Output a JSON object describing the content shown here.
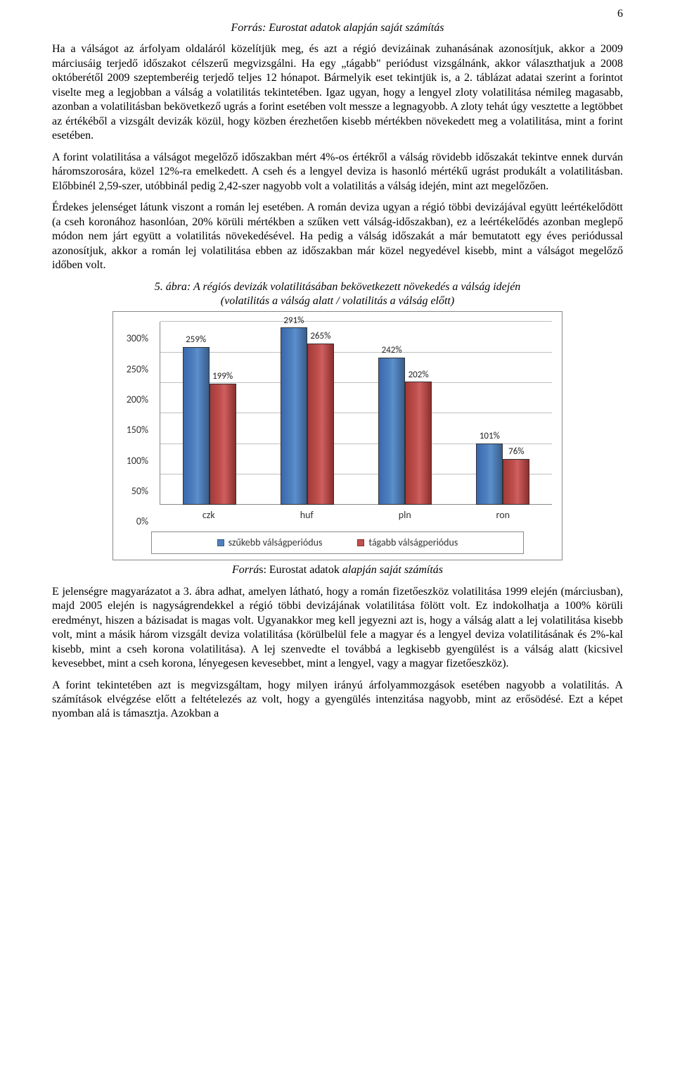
{
  "page_number": "6",
  "source_top": "Forrás: Eurostat adatok alapján saját számítás",
  "paragraphs": {
    "p1": "Ha a válságot az árfolyam oldaláról közelítjük meg, és azt a régió devizáinak zuhanásának azonosítjuk, akkor a 2009 márciusáig terjedő időszakot célszerű megvizsgálni. Ha egy „tágabb\" periódust vizsgálnánk, akkor választhatjuk a 2008 októberétől 2009 szeptemberéig terjedő teljes 12 hónapot. Bármelyik eset tekintjük is, a 2. táblázat adatai szerint a forintot viselte meg a legjobban a válság a volatilitás tekintetében. Igaz ugyan, hogy a lengyel zloty volatilitása némileg magasabb, azonban a volatilitásban bekövetkező ugrás a forint esetében volt messze a legnagyobb. A zloty tehát úgy vesztette a legtöbbet az értékéből a vizsgált devizák közül, hogy közben érezhetően kisebb mértékben növekedett meg a volatilitása, mint a forint esetében.",
    "p2": "A forint volatilitása a válságot megelőző időszakban mért 4%-os értékről a válság rövidebb időszakát tekintve ennek durván háromszorosára, közel 12%-ra emelkedett. A cseh és a lengyel deviza is hasonló mértékű ugrást produkált a volatilitásban. Előbbinél 2,59-szer, utóbbinál pedig 2,42-szer nagyobb volt a volatilitás a válság idején, mint azt megelőzően.",
    "p3": "Érdekes jelenséget látunk viszont a román lej esetében. A román deviza ugyan a régió többi devizájával együtt leértékelődött (a cseh koronához hasonlóan, 20% körüli mértékben a szűken vett válság-időszakban), ez a leértékelődés azonban meglepő módon nem járt együtt a volatilitás növekedésével. Ha pedig a válság időszakát a már bemutatott egy éves periódussal azonosítjuk, akkor a román lej volatilitása ebben az időszakban már közel negyedével kisebb, mint a válságot megelőző időben volt.",
    "p4": "E jelenségre magyarázatot a 3. ábra adhat, amelyen látható, hogy a román fizetőeszköz volatilitása 1999 elején (márciusban), majd 2005 elején is nagyságrendekkel a régió többi devizájának volatilitása fölött volt. Ez indokolhatja a 100% körüli eredményt, hiszen a bázisadat is magas volt. Ugyanakkor meg kell jegyezni azt is, hogy a válság alatt a lej volatilitása kisebb volt, mint a másik három vizsgált deviza volatilitása (körülbelül fele a magyar és a lengyel deviza volatilitásának és 2%-kal kisebb, mint a cseh korona volatilitása). A lej szenvedte el továbbá a legkisebb gyengülést is a válság alatt (kicsivel kevesebbet, mint a cseh korona, lényegesen kevesebbet, mint a lengyel, vagy a magyar fizetőeszköz).",
    "p5": "A forint tekintetében azt is megvizsgáltam, hogy milyen irányú árfolyammozgások esetében nagyobb a volatilitás. A számítások elvégzése előtt a feltételezés az volt, hogy a gyengülés intenzitása nagyobb, mint az erősödésé. Ezt a képet nyomban alá is támasztja. Azokban a"
  },
  "figure": {
    "caption_line1": "5. ábra: A régiós devizák volatilitásában bekövetkezett növekedés a válság idején",
    "caption_line2": "(volatilitás a válság alatt / volatilitás a válság előtt)",
    "source_prefix": "Forrá",
    "source_plain": "s: Eurostat adatok ",
    "source_suffix": "alapján saját számítás"
  },
  "chart": {
    "type": "bar",
    "ymax_pct": 300,
    "ytick_step_pct": 50,
    "yticks": [
      "0%",
      "50%",
      "100%",
      "150%",
      "200%",
      "250%",
      "300%"
    ],
    "categories": [
      "czk",
      "huf",
      "pln",
      "ron"
    ],
    "series": [
      {
        "name": "szűkebb válságperiódus",
        "color": "#4f81bd",
        "values_pct": [
          259,
          291,
          242,
          101
        ],
        "labels": [
          "259%",
          "291%",
          "242%",
          "101%"
        ]
      },
      {
        "name": "tágabb válságperiódus",
        "color": "#c0504d",
        "values_pct": [
          199,
          265,
          202,
          76
        ],
        "labels": [
          "199%",
          "265%",
          "202%",
          "76%"
        ]
      }
    ],
    "legend": {
      "s0": "szűkebb válságperiódus",
      "s1": "tágabb válságperiódus"
    }
  }
}
